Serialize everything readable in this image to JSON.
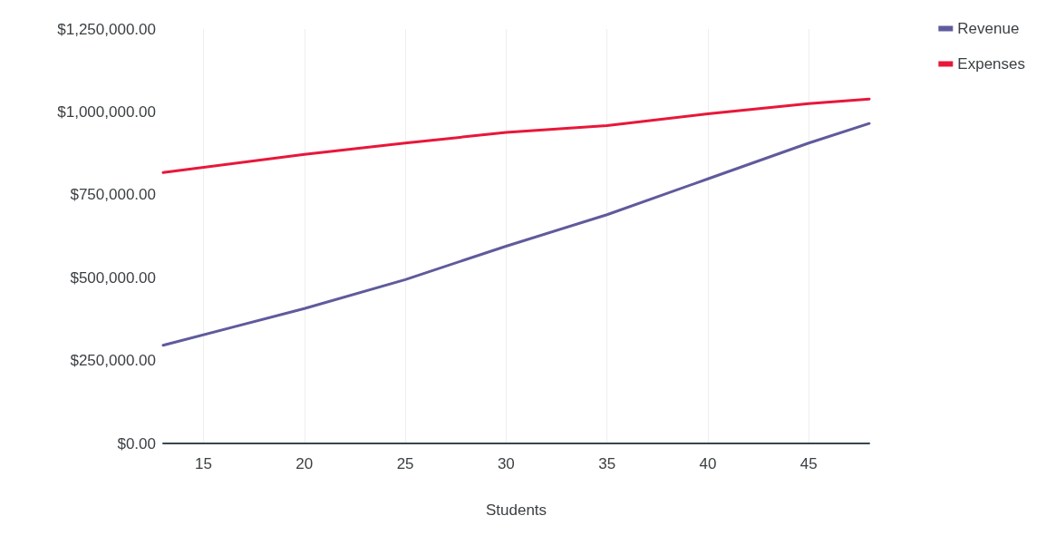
{
  "chart_data": {
    "type": "line",
    "xlabel": "Students",
    "x": [
      13,
      20,
      25,
      30,
      35,
      40,
      45,
      48
    ],
    "series": [
      {
        "name": "Revenue",
        "color": "#5f5b9c",
        "values": [
          296000,
          407000,
          494000,
          595000,
          690000,
          798000,
          906000,
          965000
        ]
      },
      {
        "name": "Expenses",
        "color": "#e8173a",
        "values": [
          817000,
          872000,
          906000,
          938000,
          959000,
          994000,
          1025000,
          1039000
        ]
      }
    ],
    "xlim": [
      13,
      48
    ],
    "xticks": [
      15,
      20,
      25,
      30,
      35,
      40,
      45
    ],
    "ylim": [
      0,
      1250000
    ],
    "yticks": [
      {
        "value": 0,
        "label": "$0.00"
      },
      {
        "value": 250000,
        "label": "$250,000.00"
      },
      {
        "value": 500000,
        "label": "$500,000.00"
      },
      {
        "value": 750000,
        "label": "$750,000.00"
      },
      {
        "value": 1000000,
        "label": "$1,000,000.00"
      },
      {
        "value": 1250000,
        "label": "$1,250,000.00"
      }
    ],
    "grid": "x",
    "legend": "top right",
    "marker": "none",
    "line_style": "solid"
  }
}
